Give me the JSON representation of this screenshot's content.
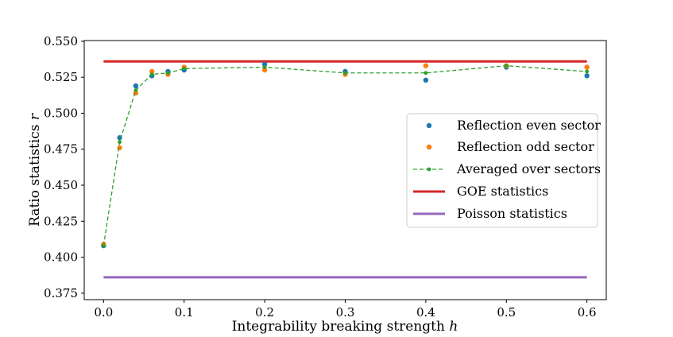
{
  "chart_data": {
    "type": "line",
    "title": "",
    "xlabel": "Integrability breaking strength h",
    "xlabel_parts": {
      "text": "Integrability breaking strength ",
      "var": "h"
    },
    "ylabel": "Ratio statistics r",
    "ylabel_parts": {
      "text": "Ratio statistics ",
      "var": "r"
    },
    "xlim": [
      -0.024,
      0.624
    ],
    "ylim": [
      0.3705,
      0.5505
    ],
    "xticks": [
      0.0,
      0.1,
      0.2,
      0.3,
      0.4,
      0.5,
      0.6
    ],
    "xtick_labels": [
      "0.0",
      "0.1",
      "0.2",
      "0.3",
      "0.4",
      "0.5",
      "0.6"
    ],
    "yticks": [
      0.375,
      0.4,
      0.425,
      0.45,
      0.475,
      0.5,
      0.525,
      0.55
    ],
    "ytick_labels": [
      "0.375",
      "0.400",
      "0.425",
      "0.450",
      "0.475",
      "0.500",
      "0.525",
      "0.550"
    ],
    "grid": false,
    "legend_position": "center-right",
    "series": [
      {
        "name": "Reflection even sector",
        "kind": "scatter",
        "color": "#1f77b4",
        "x": [
          0.0,
          0.02,
          0.04,
          0.06,
          0.08,
          0.1,
          0.2,
          0.3,
          0.4,
          0.5,
          0.6
        ],
        "y": [
          0.408,
          0.483,
          0.519,
          0.526,
          0.529,
          0.53,
          0.534,
          0.529,
          0.523,
          0.532,
          0.526
        ]
      },
      {
        "name": "Reflection odd sector",
        "kind": "scatter",
        "color": "#ff7f0e",
        "x": [
          0.0,
          0.02,
          0.04,
          0.06,
          0.08,
          0.1,
          0.2,
          0.3,
          0.4,
          0.5,
          0.6
        ],
        "y": [
          0.409,
          0.476,
          0.514,
          0.529,
          0.527,
          0.532,
          0.53,
          0.527,
          0.533,
          0.533,
          0.532
        ]
      },
      {
        "name": "Averaged over sectors",
        "kind": "dashed-line-markers",
        "color": "#2ca02c",
        "x": [
          0.0,
          0.02,
          0.04,
          0.06,
          0.08,
          0.1,
          0.2,
          0.3,
          0.4,
          0.5,
          0.6
        ],
        "y": [
          0.408,
          0.48,
          0.516,
          0.527,
          0.528,
          0.531,
          0.532,
          0.528,
          0.528,
          0.533,
          0.529
        ]
      },
      {
        "name": "GOE statistics",
        "kind": "hline",
        "color": "#d62728",
        "x": [
          0.0,
          0.6
        ],
        "y": [
          0.536,
          0.536
        ]
      },
      {
        "name": "Poisson statistics",
        "kind": "hline",
        "color": "#9467bd",
        "x": [
          0.0,
          0.6
        ],
        "y": [
          0.386,
          0.386
        ]
      }
    ]
  }
}
